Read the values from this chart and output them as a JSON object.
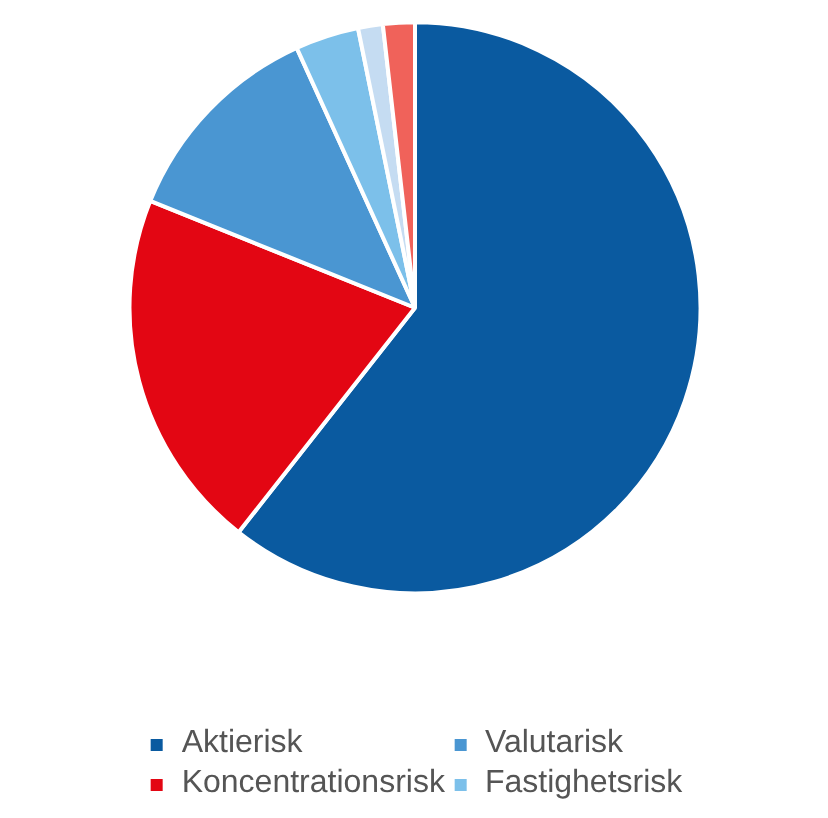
{
  "chart_data": {
    "type": "pie",
    "categories": [
      "Aktierisk",
      "Koncentrationsrisk",
      "Valutarisk",
      "Fastighetsrisk",
      null,
      null
    ],
    "values": [
      60.6,
      20.5,
      12.1,
      3.6,
      1.4,
      1.8
    ],
    "colors": [
      "#0a5aa0",
      "#e30613",
      "#4a96d2",
      "#7cc0ea",
      "#c5dcf2",
      "#f0625a"
    ],
    "legend": "bottom"
  }
}
